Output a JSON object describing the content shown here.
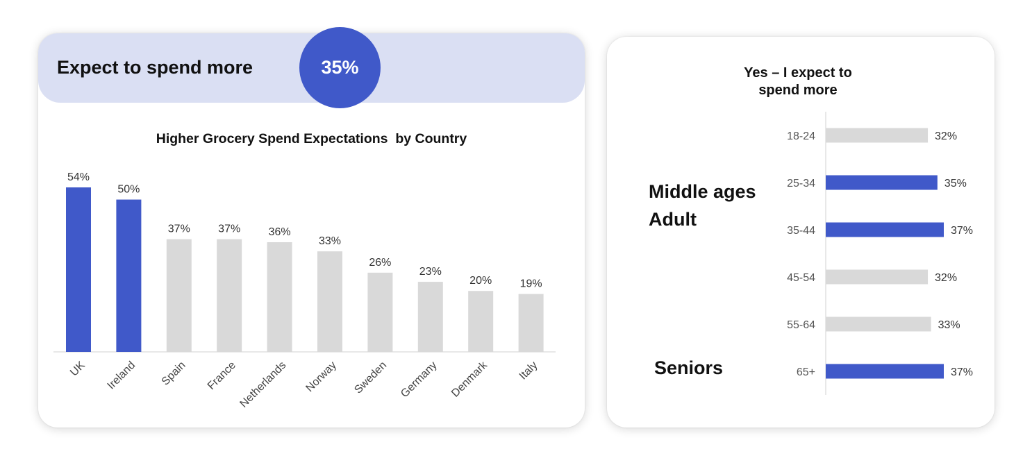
{
  "banner": {
    "title": "Expect to spend more",
    "value": "35%"
  },
  "colors": {
    "highlight": "#4059c9",
    "base": "#d9d9d9",
    "banner_bg": "#dadff3"
  },
  "chart_data": [
    {
      "type": "bar",
      "title": "Higher Grocery Spend Expectations  by Country",
      "categories": [
        "UK",
        "Ireland",
        "Spain",
        "France",
        "Netherlands",
        "Norway",
        "Sweden",
        "Germany",
        "Denmark",
        "Italy"
      ],
      "values": [
        54,
        50,
        37,
        37,
        36,
        33,
        26,
        23,
        20,
        19
      ],
      "labels": [
        "54%",
        "50%",
        "37%",
        "37%",
        "36%",
        "33%",
        "26%",
        "23%",
        "20%",
        "19%"
      ],
      "highlighted": [
        true,
        true,
        false,
        false,
        false,
        false,
        false,
        false,
        false,
        false
      ],
      "ylim": [
        0,
        54
      ],
      "grid": false
    },
    {
      "type": "bar",
      "orientation": "horizontal",
      "title": "Yes – I expect to spend more",
      "title_lines": [
        "Yes – I expect to",
        "spend more"
      ],
      "categories": [
        "18-24",
        "25-34",
        "35-44",
        "45-54",
        "55-64",
        "65+"
      ],
      "values": [
        32,
        35,
        37,
        32,
        33,
        37
      ],
      "labels": [
        "32%",
        "35%",
        "37%",
        "32%",
        "33%",
        "37%"
      ],
      "highlighted": [
        false,
        true,
        true,
        false,
        false,
        true
      ],
      "xlim": [
        0,
        37
      ],
      "grid": false
    }
  ],
  "segments": {
    "middle_line1": "Middle ages",
    "middle_line2": "Adult",
    "seniors": "Seniors"
  }
}
